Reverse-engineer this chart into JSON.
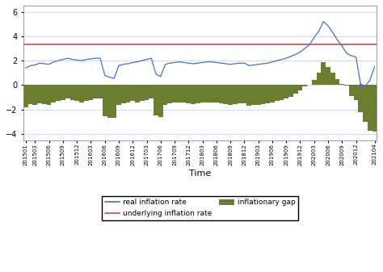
{
  "xlabel": "Time",
  "underlying_inflation_rate": 3.3,
  "ylim": [
    -4.5,
    6.5
  ],
  "yticks": [
    -4,
    -2,
    0,
    2,
    4,
    6
  ],
  "bar_color": "#6b7d30",
  "line_color": "#4472c4",
  "hline_color": "#c0504d",
  "bg_color": "#ffffff",
  "plot_bg_color": "#ffffff",
  "grid_color": "#d0dce8",
  "xtick_labels": [
    "201501",
    "201503",
    "201506",
    "201509",
    "201512",
    "201603",
    "201606",
    "201609",
    "201612",
    "201703",
    "201706",
    "201709",
    "201712",
    "201803",
    "201806",
    "201809",
    "201812",
    "201903",
    "201906",
    "201909",
    "201912",
    "202003",
    "202006",
    "202009",
    "202012",
    "202104"
  ],
  "real_inflation": [
    1.4,
    1.6,
    1.65,
    1.8,
    1.75,
    1.7,
    1.9,
    2.0,
    2.1,
    2.2,
    2.1,
    2.05,
    2.0,
    2.1,
    2.15,
    2.2,
    2.2,
    0.8,
    0.65,
    0.55,
    1.6,
    1.7,
    1.75,
    1.85,
    1.9,
    2.0,
    2.1,
    2.2,
    0.9,
    0.7,
    1.7,
    1.8,
    1.85,
    1.9,
    1.85,
    1.8,
    1.75,
    1.8,
    1.85,
    1.9,
    1.9,
    1.85,
    1.8,
    1.75,
    1.7,
    1.75,
    1.8,
    1.8,
    1.6,
    1.65,
    1.7,
    1.75,
    1.8,
    1.9,
    2.0,
    2.1,
    2.2,
    2.35,
    2.5,
    2.7,
    3.0,
    3.3,
    3.9,
    4.4,
    5.2,
    4.85,
    4.3,
    3.7,
    3.2,
    2.6,
    2.4,
    2.3,
    0.05,
    -0.05,
    0.4,
    1.5
  ],
  "inflationary_gap": [
    -1.8,
    -1.55,
    -1.65,
    -1.5,
    -1.55,
    -1.6,
    -1.4,
    -1.3,
    -1.2,
    -1.1,
    -1.2,
    -1.3,
    -1.4,
    -1.3,
    -1.2,
    -1.1,
    -1.1,
    -2.55,
    -2.7,
    -2.65,
    -1.6,
    -1.5,
    -1.45,
    -1.3,
    -1.4,
    -1.3,
    -1.2,
    -1.1,
    -2.5,
    -2.6,
    -1.6,
    -1.5,
    -1.45,
    -1.4,
    -1.45,
    -1.5,
    -1.55,
    -1.5,
    -1.45,
    -1.4,
    -1.4,
    -1.45,
    -1.5,
    -1.55,
    -1.6,
    -1.55,
    -1.5,
    -1.5,
    -1.7,
    -1.65,
    -1.6,
    -1.55,
    -1.5,
    -1.4,
    -1.3,
    -1.2,
    -1.1,
    -0.95,
    -0.7,
    -0.4,
    -0.1,
    0.0,
    0.4,
    1.0,
    1.9,
    1.5,
    1.05,
    0.5,
    0.1,
    -0.05,
    -0.9,
    -1.2,
    -2.2,
    -3.0,
    -3.75,
    -3.8
  ]
}
